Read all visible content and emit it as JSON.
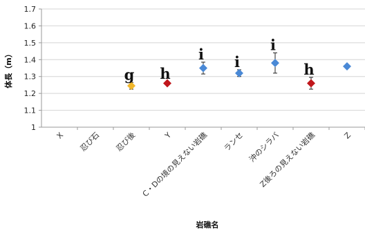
{
  "chart_data": {
    "type": "scatter",
    "ylabel": "体長（m）",
    "xlabel": "岩礁名",
    "ylim": [
      1,
      1.7
    ],
    "yticks": [
      "1",
      "1.1",
      "1.2",
      "1.3",
      "1.4",
      "1.5",
      "1.6",
      "1.7"
    ],
    "grid": true,
    "categories": [
      "X",
      "忍び石",
      "忍び後",
      "Y",
      "C・Dの境の見えない岩礁",
      "ランセ",
      "沖のシラバ",
      "Z後ろの見えない岩礁",
      "Z"
    ],
    "points": [
      {
        "category": "忍び後",
        "value": 1.245,
        "err": 0.02,
        "color": "#f1b72c",
        "letter": "g"
      },
      {
        "category": "Y",
        "value": 1.26,
        "err": 0.01,
        "color": "#c0171c",
        "letter": "h"
      },
      {
        "category": "C・Dの境の見えない岩礁",
        "value": 1.35,
        "err": 0.035,
        "color": "#4a89d6",
        "letter": "i"
      },
      {
        "category": "ランセ",
        "value": 1.32,
        "err": 0.02,
        "color": "#4a89d6",
        "letter": "i"
      },
      {
        "category": "沖のシラバ",
        "value": 1.38,
        "err": 0.06,
        "color": "#4a89d6",
        "letter": "i"
      },
      {
        "category": "Z後ろの見えない岩礁",
        "value": 1.26,
        "err": 0.035,
        "color": "#c0171c",
        "letter": "h"
      },
      {
        "category": "Z",
        "value": 1.36,
        "err": 0.01,
        "color": "#4a89d6",
        "letter": ""
      }
    ]
  }
}
